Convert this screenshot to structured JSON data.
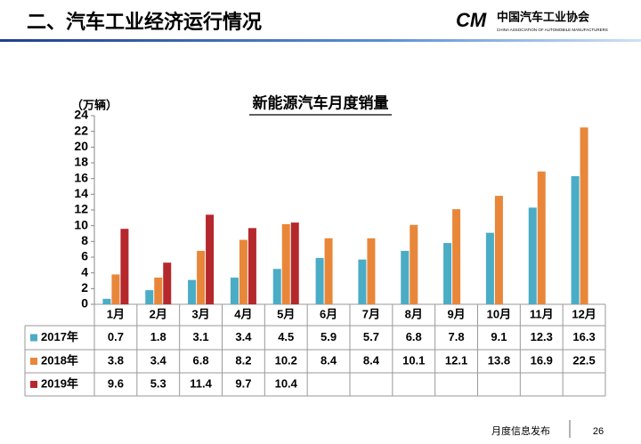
{
  "header": {
    "title": "二、汽车工业经济运行情况",
    "logo_mark": "CM",
    "logo_name": "中国汽车工业协会",
    "logo_english": "CHINA ASSOCIATION OF AUTOMOBILE MANUFACTURERS"
  },
  "footer": {
    "label": "月度信息发布",
    "page": "26"
  },
  "chart_data": {
    "type": "bar",
    "title": "新能源汽车月度销量",
    "y_label": "（万辆）",
    "categories": [
      "1月",
      "2月",
      "3月",
      "4月",
      "5月",
      "6月",
      "7月",
      "8月",
      "9月",
      "10月",
      "11月",
      "12月"
    ],
    "series": [
      {
        "name": "2017年",
        "color": "#4bacc6",
        "values": [
          0.7,
          1.8,
          3.1,
          3.4,
          4.5,
          5.9,
          5.7,
          6.8,
          7.8,
          9.1,
          12.3,
          16.3
        ]
      },
      {
        "name": "2018年",
        "color": "#e8873a",
        "values": [
          3.8,
          3.4,
          6.8,
          8.2,
          10.2,
          8.4,
          8.4,
          10.1,
          12.1,
          13.8,
          16.9,
          22.5
        ]
      },
      {
        "name": "2019年",
        "color": "#b5282c",
        "values": [
          9.6,
          5.3,
          11.4,
          9.7,
          10.4,
          null,
          null,
          null,
          null,
          null,
          null,
          null
        ]
      }
    ],
    "ylim": [
      0,
      24
    ],
    "yticks": [
      0,
      2,
      4,
      6,
      8,
      10,
      12,
      14,
      16,
      18,
      20,
      22,
      24
    ],
    "grid": false,
    "data_table": true
  }
}
